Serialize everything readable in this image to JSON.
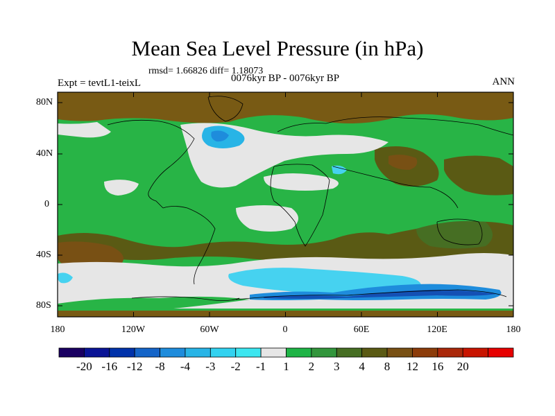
{
  "title": "Mean Sea Level Pressure (in hPa)",
  "stats_text": "rmsd= 1.66826 diff= 1.18073",
  "period_text": "0076kyr BP - 0076kyr BP",
  "experiment_text": "Expt = tevtL1-teixL",
  "season_text": "ANN",
  "lat_labels": [
    "80N",
    "40N",
    "0",
    "40S",
    "80S"
  ],
  "lon_labels": [
    "180",
    "120W",
    "60W",
    "0",
    "60E",
    "120E",
    "180"
  ],
  "colorbar": {
    "colors": [
      "#1a0062",
      "#0a1496",
      "#0032aa",
      "#1464c8",
      "#1e8cdc",
      "#28b4e6",
      "#32d2f0",
      "#3ce6f0",
      "#e6e6e6",
      "#1eb446",
      "#32963c",
      "#466e23",
      "#5a5a14",
      "#785014",
      "#8c3c0a",
      "#aa280a",
      "#c81400",
      "#e60000"
    ],
    "labels": [
      "-20",
      "-16",
      "-12",
      "-8",
      "-4",
      "-3",
      "-2",
      "-1",
      "1",
      "2",
      "3",
      "4",
      "8",
      "12",
      "16",
      "20"
    ]
  },
  "palette": {
    "brown": "#785a14",
    "green": "#28b446",
    "light_gray": "#e6e6e6",
    "cyan": "#46d2f0",
    "blue": "#1e8cdc",
    "dark_blue": "#1450b4"
  }
}
